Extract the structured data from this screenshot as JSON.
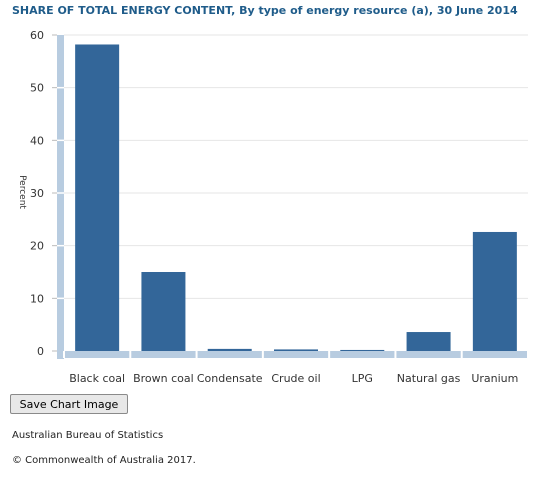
{
  "chart_data": {
    "type": "bar",
    "title": "SHARE OF TOTAL ENERGY CONTENT, By type of energy resource (a), 30 June 2014",
    "xlabel": "",
    "ylabel": "Percent",
    "categories": [
      "Black coal",
      "Brown coal",
      "Condensate",
      "Crude oil",
      "LPG",
      "Natural gas",
      "Uranium"
    ],
    "values": [
      58.2,
      15.0,
      0.4,
      0.3,
      0.2,
      3.6,
      22.6
    ],
    "ylim": [
      0,
      60
    ],
    "yticks": [
      0,
      10,
      20,
      30,
      40,
      50,
      60
    ],
    "grid": true,
    "legend": "none",
    "colors": {
      "bar": "#336699",
      "axis": "#b8cce0",
      "grid": "#e6e6e6"
    }
  },
  "controls": {
    "save_label": "Save Chart Image"
  },
  "footer": {
    "source": "Australian Bureau of Statistics",
    "copyright": "© Commonwealth of Australia 2017."
  }
}
